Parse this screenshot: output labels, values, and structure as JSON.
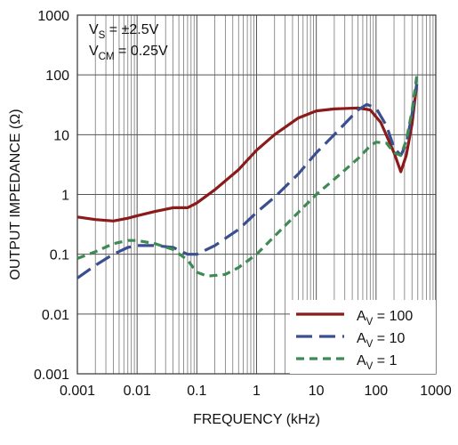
{
  "chart_data": {
    "type": "line",
    "xlabel": "FREQUENCY (kHz)",
    "ylabel": "OUTPUT IMPEDANCE (Ω)",
    "xscale": "log",
    "yscale": "log",
    "xlim": [
      0.001,
      1000
    ],
    "ylim": [
      0.001,
      1000
    ],
    "xticks": [
      "0.001",
      "0.01",
      "0.1",
      "1",
      "10",
      "100",
      "1000"
    ],
    "yticks": [
      "0.001",
      "0.01",
      "0.1",
      "1",
      "10",
      "100",
      "1000"
    ],
    "grid": true,
    "legend_position": "bottom-right",
    "annotations": [
      {
        "base": "V",
        "sub": "S",
        "rest": " = ±2.5V"
      },
      {
        "base": "V",
        "sub": "CM",
        "rest": " = 0.25V"
      }
    ],
    "series": [
      {
        "label_base": "A",
        "label_sub": "V",
        "label_rest": " = 100",
        "color": "#8b1a1a",
        "dash": "solid",
        "points": [
          [
            0.001,
            0.42
          ],
          [
            0.002,
            0.38
          ],
          [
            0.004,
            0.36
          ],
          [
            0.007,
            0.4
          ],
          [
            0.01,
            0.44
          ],
          [
            0.02,
            0.52
          ],
          [
            0.04,
            0.6
          ],
          [
            0.07,
            0.6
          ],
          [
            0.1,
            0.72
          ],
          [
            0.2,
            1.2
          ],
          [
            0.5,
            2.6
          ],
          [
            1,
            5.5
          ],
          [
            2,
            10
          ],
          [
            5,
            19
          ],
          [
            10,
            25
          ],
          [
            20,
            27
          ],
          [
            50,
            28
          ],
          [
            80,
            26
          ],
          [
            120,
            16
          ],
          [
            200,
            5
          ],
          [
            260,
            2.4
          ],
          [
            320,
            4.5
          ],
          [
            400,
            15
          ],
          [
            480,
            70
          ]
        ]
      },
      {
        "label_base": "A",
        "label_sub": "V",
        "label_rest": " = 10",
        "color": "#3a4f8f",
        "dash": "long",
        "points": [
          [
            0.001,
            0.04
          ],
          [
            0.002,
            0.065
          ],
          [
            0.004,
            0.1
          ],
          [
            0.007,
            0.13
          ],
          [
            0.01,
            0.14
          ],
          [
            0.02,
            0.14
          ],
          [
            0.04,
            0.13
          ],
          [
            0.07,
            0.1
          ],
          [
            0.1,
            0.1
          ],
          [
            0.2,
            0.14
          ],
          [
            0.5,
            0.26
          ],
          [
            1,
            0.5
          ],
          [
            2,
            0.9
          ],
          [
            5,
            2.2
          ],
          [
            10,
            5
          ],
          [
            20,
            10
          ],
          [
            50,
            26
          ],
          [
            70,
            32
          ],
          [
            100,
            28
          ],
          [
            150,
            14
          ],
          [
            200,
            6
          ],
          [
            260,
            4.5
          ],
          [
            320,
            7
          ],
          [
            400,
            22
          ],
          [
            480,
            70
          ]
        ]
      },
      {
        "label_base": "A",
        "label_sub": "V",
        "label_rest": " = 1",
        "color": "#3d8a55",
        "dash": "dashed",
        "points": [
          [
            0.001,
            0.085
          ],
          [
            0.002,
            0.11
          ],
          [
            0.004,
            0.15
          ],
          [
            0.007,
            0.17
          ],
          [
            0.01,
            0.17
          ],
          [
            0.02,
            0.15
          ],
          [
            0.04,
            0.12
          ],
          [
            0.07,
            0.08
          ],
          [
            0.1,
            0.05
          ],
          [
            0.15,
            0.043
          ],
          [
            0.3,
            0.046
          ],
          [
            0.5,
            0.06
          ],
          [
            1,
            0.1
          ],
          [
            2,
            0.2
          ],
          [
            5,
            0.5
          ],
          [
            10,
            1.0
          ],
          [
            20,
            1.8
          ],
          [
            50,
            4
          ],
          [
            80,
            6.5
          ],
          [
            100,
            7.5
          ],
          [
            150,
            7.2
          ],
          [
            200,
            5
          ],
          [
            260,
            4.5
          ],
          [
            320,
            8
          ],
          [
            400,
            25
          ],
          [
            480,
            95
          ]
        ]
      }
    ]
  }
}
